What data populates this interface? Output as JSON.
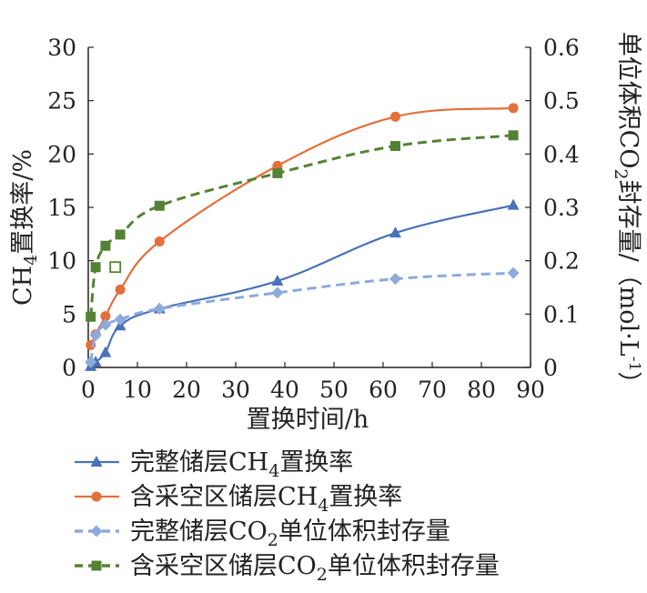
{
  "chart_data": {
    "type": "line",
    "xlabel": "置换时间/h",
    "ylabel_left": {
      "main": "CH",
      "sub": "4",
      "rest": "置换率/%"
    },
    "ylabel_right": {
      "main": "单位体积CO",
      "sub": "2",
      "rest": "封存量/（mol·L",
      "sup": "-1",
      "end": "）"
    },
    "xlim": [
      0,
      90
    ],
    "ylim_left": [
      0,
      30
    ],
    "ylim_right": [
      0,
      0.6
    ],
    "x_ticks": [
      "0",
      "10",
      "20",
      "30",
      "40",
      "50",
      "60",
      "70",
      "80",
      "90"
    ],
    "y_left_ticks": [
      "0",
      "5",
      "10",
      "15",
      "20",
      "25",
      "30"
    ],
    "y_right_ticks": [
      "0",
      "0.1",
      "0.2",
      "0.3",
      "0.4",
      "0.5",
      "0.6"
    ],
    "legend_position": "bottom",
    "series": [
      {
        "name": "完整储层CH4置换率",
        "legend": {
          "pre": "完整储层CH",
          "sub": "4",
          "post": "置换率"
        },
        "axis": "left",
        "color": "#4a72b8",
        "dash": false,
        "marker": "triangle",
        "x": [
          0.5,
          1.5,
          3.5,
          6.5,
          14.5,
          38.5,
          62.5,
          86.5
        ],
        "y": [
          0.1,
          0.5,
          1.4,
          3.9,
          5.5,
          8.1,
          12.6,
          15.2
        ]
      },
      {
        "name": "含采空区储层CH4置换率",
        "legend": {
          "pre": "含采空区储层CH",
          "sub": "4",
          "post": "置换率"
        },
        "axis": "left",
        "color": "#e36f3a",
        "dash": false,
        "marker": "circle",
        "x": [
          0.5,
          1.5,
          3.5,
          6.5,
          14.5,
          38.5,
          62.5,
          86.5
        ],
        "y": [
          2.1,
          3.1,
          4.8,
          7.3,
          11.8,
          18.9,
          23.5,
          24.3
        ]
      },
      {
        "name": "完整储层CO2单位体积封存量",
        "legend": {
          "pre": "完整储层CO",
          "sub": "2",
          "post": "单位体积封存量"
        },
        "axis": "right",
        "color": "#8eaadb",
        "dash": true,
        "marker": "diamond",
        "x": [
          0.5,
          1.5,
          3.5,
          6.5,
          14.5,
          38.5,
          62.5,
          86.5
        ],
        "y": [
          0.01,
          0.06,
          0.08,
          0.09,
          0.11,
          0.14,
          0.166,
          0.177
        ]
      },
      {
        "name": "含采空区储层CO2单位体积封存量",
        "legend": {
          "pre": "含采空区储层CO",
          "sub": "2",
          "post": "单位体积封存量"
        },
        "axis": "right",
        "color": "#548235",
        "dash": true,
        "marker": "square",
        "x": [
          0.5,
          1.5,
          3.5,
          6.5,
          14.5,
          38.5,
          62.5,
          86.5
        ],
        "y": [
          0.095,
          0.188,
          0.228,
          0.249,
          0.303,
          0.364,
          0.415,
          0.435
        ],
        "open_square": {
          "x": 5.5,
          "y": 0.188
        }
      }
    ]
  }
}
